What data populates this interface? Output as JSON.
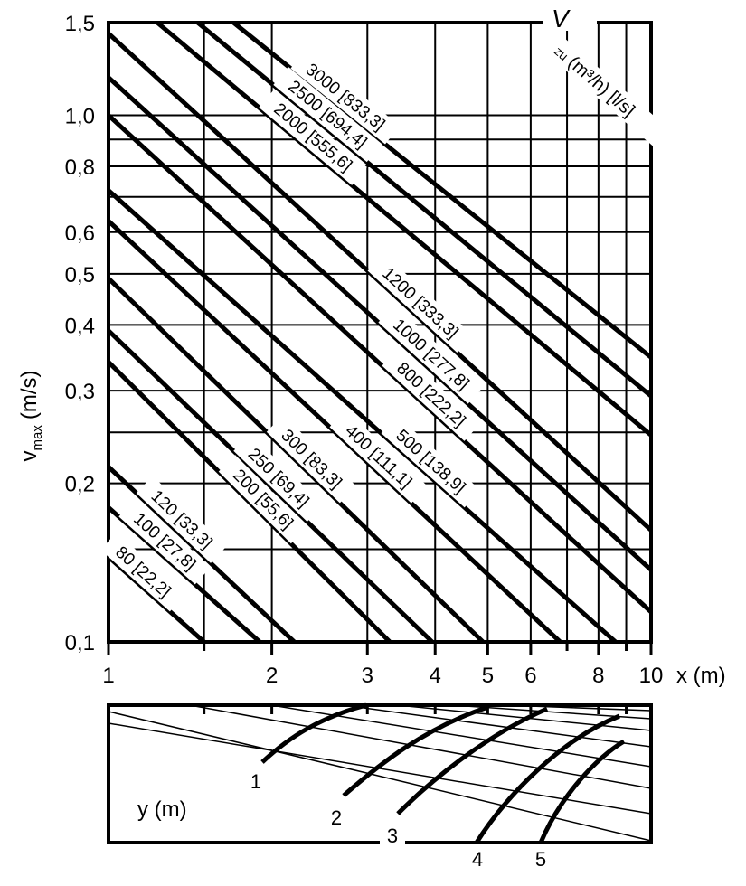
{
  "chart_data": [
    {
      "type": "line",
      "title": "",
      "xlabel": "x (m)",
      "ylabel_main": "v",
      "ylabel_sub": "max",
      "ylabel_unit": "(m/s)",
      "x_scale": "log",
      "y_scale": "log",
      "xlim": [
        1,
        10
      ],
      "ylim": [
        0.1,
        1.5
      ],
      "grid": true,
      "legend_title_main": "V",
      "legend_title_sub": "zu",
      "legend_title_unit": "(m³/h) [l/s]",
      "x_tick_labels": [
        {
          "value": 1,
          "label": "1"
        },
        {
          "value": 2,
          "label": "2"
        },
        {
          "value": 3,
          "label": "3"
        },
        {
          "value": 4,
          "label": "4"
        },
        {
          "value": 5,
          "label": "5"
        },
        {
          "value": 6,
          "label": "6"
        },
        {
          "value": 8,
          "label": "8"
        },
        {
          "value": 10,
          "label": "10"
        }
      ],
      "x_minor_ticks": [
        1.5,
        7,
        9
      ],
      "y_tick_labels": [
        {
          "value": 0.1,
          "label": "0,1"
        },
        {
          "value": 0.2,
          "label": "0,2"
        },
        {
          "value": 0.3,
          "label": "0,3"
        },
        {
          "value": 0.4,
          "label": "0,4"
        },
        {
          "value": 0.5,
          "label": "0,5"
        },
        {
          "value": 0.6,
          "label": "0,6"
        },
        {
          "value": 0.8,
          "label": "0,8"
        },
        {
          "value": 1.0,
          "label": "1,0"
        },
        {
          "value": 1.5,
          "label": "1,5"
        }
      ],
      "y_minor_grid": [
        0.15,
        0.25,
        0.7,
        0.9
      ],
      "series": [
        {
          "name": "80 [22,2]",
          "x": [
            1,
            1.5
          ],
          "y": [
            0.145,
            0.1
          ]
        },
        {
          "name": "100 [27,8]",
          "x": [
            1,
            1.9
          ],
          "y": [
            0.18,
            0.1
          ]
        },
        {
          "name": "120 [33,3]",
          "x": [
            1,
            2.2
          ],
          "y": [
            0.215,
            0.1
          ]
        },
        {
          "name": "200 [55,6]",
          "x": [
            1,
            3.3
          ],
          "y": [
            0.34,
            0.1
          ]
        },
        {
          "name": "250 [69,4]",
          "x": [
            1,
            3.95
          ],
          "y": [
            0.39,
            0.1
          ]
        },
        {
          "name": "300 [83,3]",
          "x": [
            1,
            4.9
          ],
          "y": [
            0.49,
            0.1
          ]
        },
        {
          "name": "400 [111,1]",
          "x": [
            1,
            6.8
          ],
          "y": [
            0.63,
            0.1
          ]
        },
        {
          "name": "500 [138,9]",
          "x": [
            1,
            8.6
          ],
          "y": [
            0.72,
            0.1
          ]
        },
        {
          "name": "800 [222,2]",
          "x": [
            1,
            10
          ],
          "y": [
            1.0,
            0.114
          ]
        },
        {
          "name": "1000 [277,8]",
          "x": [
            1,
            10
          ],
          "y": [
            1.18,
            0.137
          ]
        },
        {
          "name": "1200 [333,3]",
          "x": [
            1,
            10
          ],
          "y": [
            1.43,
            0.163
          ]
        },
        {
          "name": "2000 [555,6]",
          "x": [
            1.23,
            10
          ],
          "y": [
            1.5,
            0.247
          ]
        },
        {
          "name": "2500 [694,4]",
          "x": [
            1.46,
            10
          ],
          "y": [
            1.5,
            0.293
          ]
        },
        {
          "name": "3000 [833,3]",
          "x": [
            1.7,
            10
          ],
          "y": [
            1.5,
            0.347
          ]
        }
      ]
    },
    {
      "type": "line",
      "title": "",
      "ylabel": "y (m)",
      "x_scale": "log",
      "xlim": [
        1,
        10
      ],
      "x_tick_values": [
        1.5,
        2,
        3,
        4,
        5,
        6,
        8,
        9
      ],
      "curve_labels": [
        "1",
        "2",
        "3",
        "4",
        "5"
      ]
    }
  ]
}
